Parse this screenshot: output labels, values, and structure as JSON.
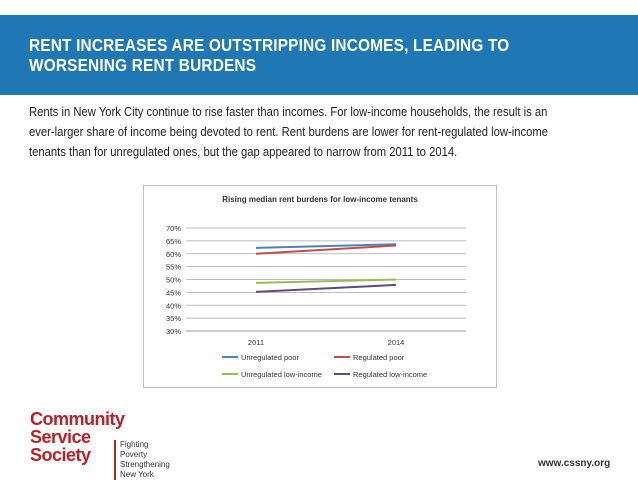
{
  "header": {
    "title": "RENT INCREASES ARE OUTSTRIPPING INCOMES, LEADING TO WORSENING RENT BURDENS",
    "background_color": "#1f77b4"
  },
  "intro_text": "Rents in New York City continue to rise faster than incomes. For low-income households, the result is an ever-larger share of income being devoted to rent. Rent burdens are lower for rent-regulated low-income tenants than for unregulated ones, but the gap appeared to narrow from 2011 to 2014.",
  "chart_data": {
    "type": "line",
    "title": "Rising median rent burdens for low-income tenants",
    "xlabel": "",
    "ylabel": "",
    "categories": [
      "2011",
      "2014"
    ],
    "ylim": [
      30,
      70
    ],
    "yticks": [
      "30%",
      "35%",
      "40%",
      "45%",
      "50%",
      "55%",
      "60%",
      "65%",
      "70%"
    ],
    "grid": true,
    "legend_position": "bottom",
    "series": [
      {
        "name": "Unregulated poor",
        "values": [
          62.3,
          63.7
        ],
        "color": "#4f81bd"
      },
      {
        "name": "Regulated poor",
        "values": [
          60.0,
          63.2
        ],
        "color": "#c0504d"
      },
      {
        "name": "Unregulated low-income",
        "values": [
          48.7,
          50.0
        ],
        "color": "#9bbb59"
      },
      {
        "name": "Regulated low-income",
        "values": [
          45.2,
          47.9
        ],
        "color": "#604a7b"
      }
    ]
  },
  "logo": {
    "name_lines": [
      "Community",
      "Service",
      "Society"
    ],
    "tagline_lines": [
      "Fighting Poverty",
      "Strengthening",
      "New York"
    ],
    "brand_color": "#b72228"
  },
  "footer": {
    "url": "www.cssny.org"
  }
}
